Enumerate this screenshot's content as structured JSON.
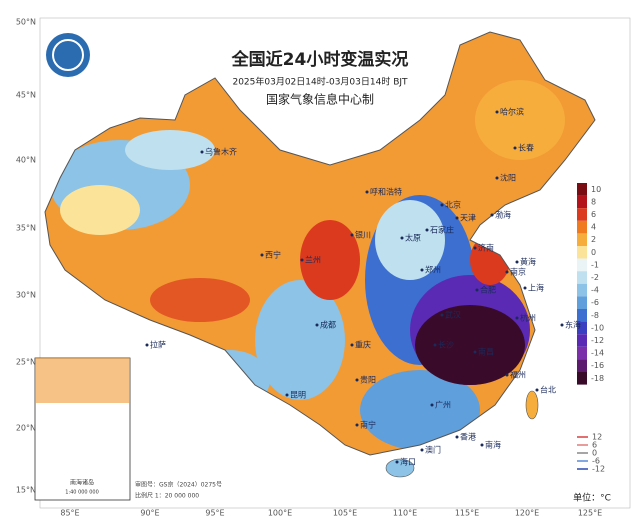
{
  "header": {
    "title": "全国近24小时变温实况",
    "subtitle": "2025年03月02日14时-03月03日14时 BJT",
    "producer": "国家气象信息中心制"
  },
  "axes": {
    "lat_labels": [
      "50°N",
      "45°N",
      "40°N",
      "35°N",
      "30°N",
      "25°N",
      "20°N",
      "15°N"
    ],
    "lon_labels": [
      "85°E",
      "90°E",
      "95°E",
      "100°E",
      "105°E",
      "110°E",
      "115°E",
      "120°E",
      "125°E"
    ]
  },
  "legend": {
    "labels": [
      10,
      8,
      6,
      4,
      2,
      0,
      -1,
      -2,
      -4,
      -6,
      -8,
      -10,
      -12,
      -14,
      -16,
      -18
    ],
    "colors": [
      "#7a0c14",
      "#b3141c",
      "#dc3a1e",
      "#f07a1e",
      "#f6ad3c",
      "#fbe39a",
      "#eaf4f7",
      "#bfe0ee",
      "#8cc3e6",
      "#5f9fdc",
      "#3c6fd0",
      "#3a3fc2",
      "#5a2ab5",
      "#7b2fa8",
      "#5b1a6e",
      "#3a0a2a"
    ],
    "unit": "单位：°C"
  },
  "contour_legend": {
    "labels": [
      12,
      6,
      0,
      -6,
      -12
    ],
    "colors": [
      "#d94040",
      "#e07a7a",
      "#888888",
      "#5a8ad8",
      "#2a4ab0"
    ]
  },
  "cities": [
    "乌鲁木齐",
    "哈尔滨",
    "长春",
    "沈阳",
    "呼和浩特",
    "北京",
    "天津",
    "银川",
    "石家庄",
    "太原",
    "济南",
    "兰州",
    "西宁",
    "郑州",
    "拉萨",
    "成都",
    "重庆",
    "武汉",
    "合肥",
    "南京",
    "上海",
    "杭州",
    "长沙",
    "南昌",
    "福州",
    "贵阳",
    "昆明",
    "南宁",
    "广州",
    "台北",
    "香港",
    "澳门",
    "海口",
    "黄海",
    "东海",
    "南海",
    "渤海"
  ],
  "footer": {
    "approval": "审图号：GS京（2024）0275号",
    "scale": "比例尺 1：20 000 000"
  },
  "inset": {
    "label": "南海诸岛",
    "scale": "1:40 000 000"
  }
}
